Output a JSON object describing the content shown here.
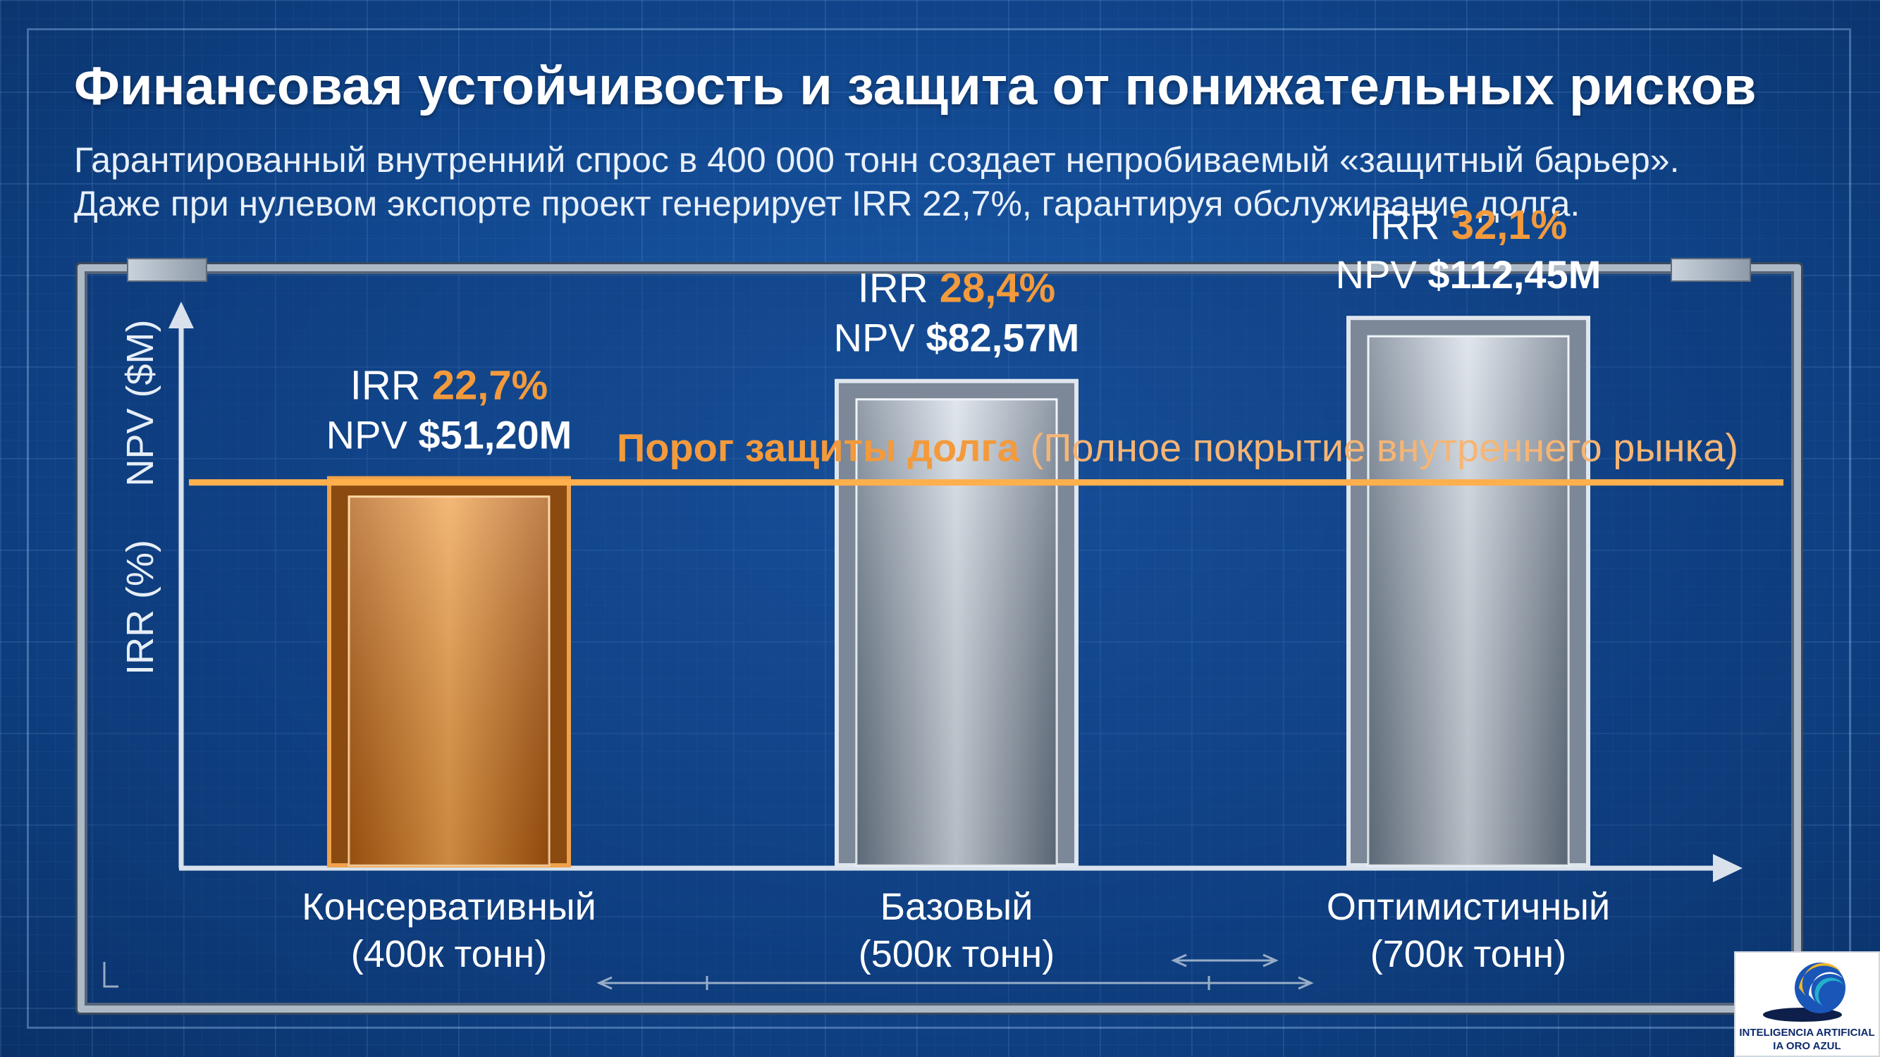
{
  "title": "Финансовая устойчивость и защита от понижательных рисков",
  "subtitle_line1": "Гарантированный внутренний спрос в 400 000 тонн создает непробиваемый «защитный барьер».",
  "subtitle_line2": "Даже при нулевом экспорте проект генерирует IRR 22,7%, гарантируя обслуживание долга.",
  "colors": {
    "accent_orange": "#f39a3c",
    "bar_copper": "#c96f1c",
    "bar_steel": "#a9b6c4",
    "background": "#10488f"
  },
  "chart_data": {
    "type": "bar",
    "ylabel_irr": "IRR (%)",
    "ylabel_npv": "NPV ($M)",
    "categories": [
      {
        "name": "Консервативный",
        "volume": "(400к тонн)"
      },
      {
        "name": "Базовый",
        "volume": "(500к тонн)"
      },
      {
        "name": "Оптимистичный",
        "volume": "(700к тонн)"
      }
    ],
    "series": [
      {
        "name": "IRR",
        "values": [
          22.7,
          28.4,
          32.1
        ],
        "labels": [
          "22,7%",
          "28,4%",
          "32,1%"
        ]
      },
      {
        "name": "NPV",
        "values": [
          51.2,
          82.57,
          112.45
        ],
        "labels": [
          "$51,20M",
          "$82,57M",
          "$112,45M"
        ]
      }
    ],
    "bar_styles": [
      "copper",
      "steel",
      "steel"
    ],
    "threshold": {
      "irr_value": 22.7,
      "label_bold": "Порог защиты долга",
      "label_rest": "(Полное покрытие внутреннего рынка)"
    },
    "ylim_irr": [
      0,
      40
    ],
    "grid": true,
    "legend": "none"
  },
  "logo": {
    "line1": "INTELIGENCIA ARTIFICIAL",
    "line2": "IA ORO AZUL",
    "icon": "swirl-globe-icon"
  }
}
